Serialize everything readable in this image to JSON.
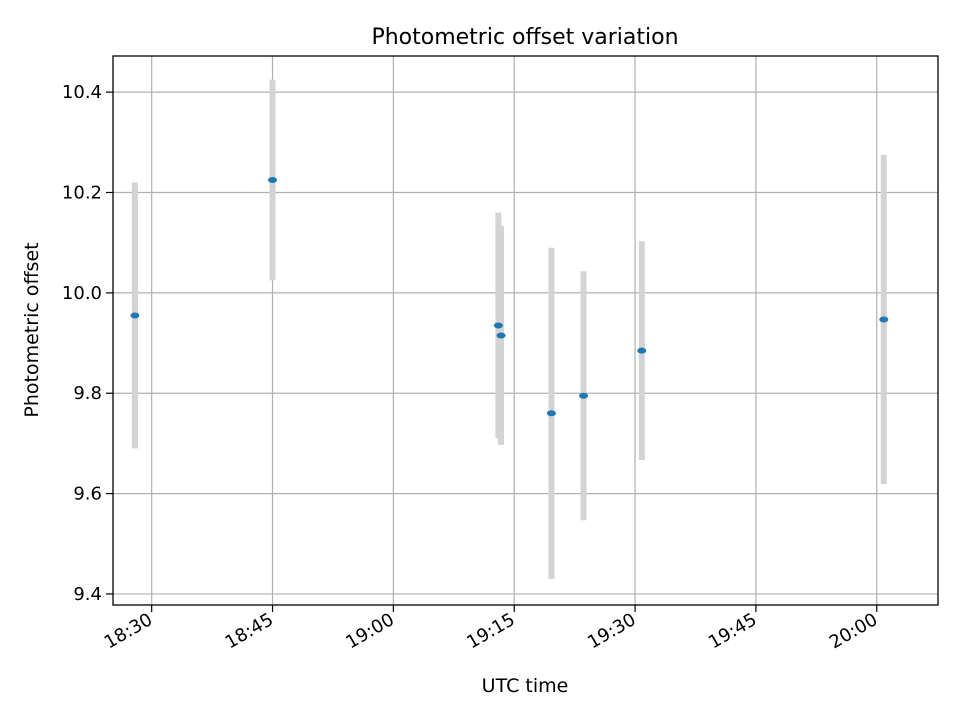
{
  "chart_data": {
    "type": "scatter",
    "title": "Photometric offset variation",
    "xlabel": "UTC time",
    "ylabel": "Photometric offset",
    "x_axis_type": "time",
    "xlim": [
      "18:25:12",
      "20:07:36"
    ],
    "ylim": [
      9.378,
      10.472
    ],
    "grid": true,
    "xticks": [
      "18:30",
      "18:45",
      "19:00",
      "19:15",
      "19:30",
      "19:45",
      "20:00"
    ],
    "yticks": [
      9.4,
      9.6,
      9.8,
      10.0,
      10.2,
      10.4
    ],
    "ytick_labels": [
      "9.4",
      "9.6",
      "9.8",
      "10.0",
      "10.2",
      "10.4"
    ],
    "marker_color": "#1f77b4",
    "errorbar_color": "#d3d3d3",
    "points": [
      {
        "time": "18:27:55",
        "y": 9.955,
        "err": 0.265
      },
      {
        "time": "18:45:00",
        "y": 10.225,
        "err": 0.2
      },
      {
        "time": "19:13:02",
        "y": 9.935,
        "err": 0.225
      },
      {
        "time": "19:13:22",
        "y": 9.915,
        "err": 0.218
      },
      {
        "time": "19:19:37",
        "y": 9.76,
        "err": 0.33
      },
      {
        "time": "19:23:36",
        "y": 9.795,
        "err": 0.248
      },
      {
        "time": "19:30:50",
        "y": 9.885,
        "err": 0.218
      },
      {
        "time": "20:00:52",
        "y": 9.947,
        "err": 0.328
      }
    ]
  }
}
